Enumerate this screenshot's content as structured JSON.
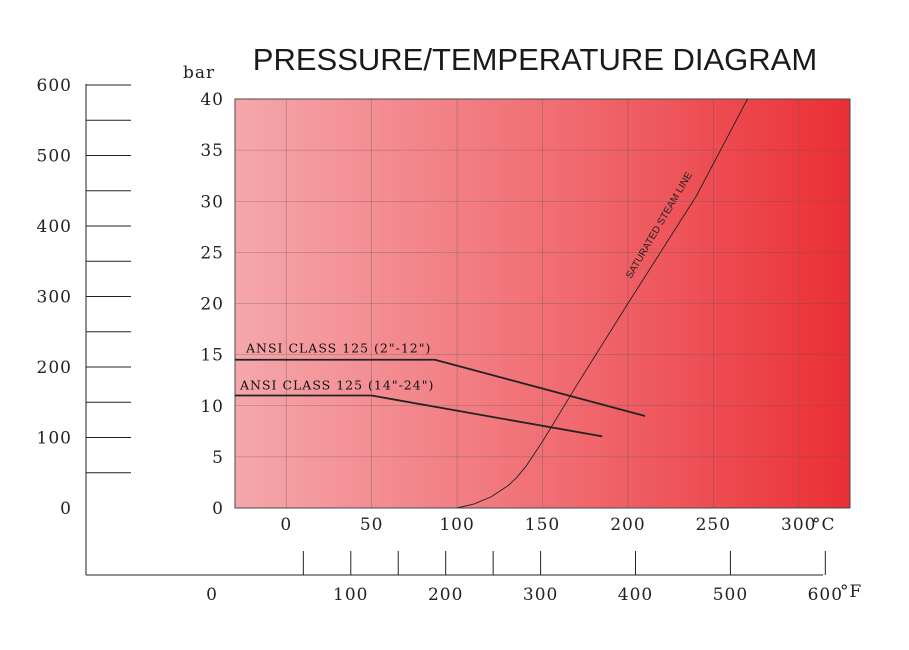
{
  "chart_data": {
    "type": "line",
    "title": "PRESSURE/TEMPERATURE DIAGRAM",
    "y_unit_label": "bar",
    "x_unit_label_c": "°C",
    "x_unit_label_f": "°F",
    "xlim_c": [
      -30,
      330
    ],
    "ylim_bar": [
      0,
      40
    ],
    "x_ticks_c": [
      0,
      50,
      100,
      150,
      200,
      250,
      300
    ],
    "y_ticks_bar": [
      0,
      5,
      10,
      15,
      20,
      25,
      30,
      35,
      40
    ],
    "psi_ticks": [
      0,
      100,
      200,
      300,
      400,
      500,
      600
    ],
    "f_ticks": [
      0,
      100,
      200,
      300,
      400,
      500,
      600
    ],
    "grid": true,
    "series": [
      {
        "name": "ANSI CLASS 125 (2\"-12\")",
        "x": [
          -30,
          87,
          210
        ],
        "y": [
          14.5,
          14.5,
          9.0
        ]
      },
      {
        "name": "ANSI CLASS 125 (14\"-24\")",
        "x": [
          -30,
          50,
          185
        ],
        "y": [
          11.0,
          11.0,
          7.0
        ]
      },
      {
        "name": "SATURATED STEAM LINE",
        "x": [
          100,
          110,
          120,
          130,
          135,
          140,
          150,
          170,
          200,
          240,
          270
        ],
        "y": [
          0,
          0.4,
          1.1,
          2.2,
          3.0,
          4.0,
          6.5,
          12.0,
          20.0,
          30.5,
          40.0
        ]
      }
    ]
  }
}
